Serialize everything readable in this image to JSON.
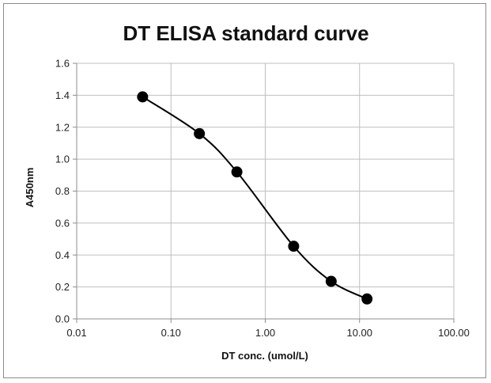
{
  "chart_data": {
    "type": "scatter",
    "title": "DT ELISA standard curve",
    "xlabel": "DT conc. (umol/L)",
    "ylabel": "A450nm",
    "x_scale": "log",
    "xlim": [
      0.01,
      100
    ],
    "ylim": [
      0,
      1.6
    ],
    "x_ticks": [
      0.01,
      0.1,
      1,
      10,
      100
    ],
    "x_tick_labels": [
      "0.01",
      "0.10",
      "1.00",
      "10.00",
      "100.00"
    ],
    "y_ticks": [
      0,
      0.2,
      0.4,
      0.6,
      0.8,
      1.0,
      1.2,
      1.4,
      1.6
    ],
    "y_tick_labels": [
      "0.0",
      "0.2",
      "0.4",
      "0.6",
      "0.8",
      "1.0",
      "1.2",
      "1.4",
      "1.6"
    ],
    "grid": true,
    "legend": "none",
    "line": "smooth",
    "colors": {
      "line": "#000000",
      "marker": "#000000",
      "grid": "#bfbfbf",
      "axis": "#8c8c8c"
    },
    "series": [
      {
        "x": [
          0.05,
          0.2,
          0.5,
          2,
          5,
          12
        ],
        "y": [
          1.39,
          1.16,
          0.92,
          0.455,
          0.235,
          0.125
        ]
      }
    ]
  }
}
